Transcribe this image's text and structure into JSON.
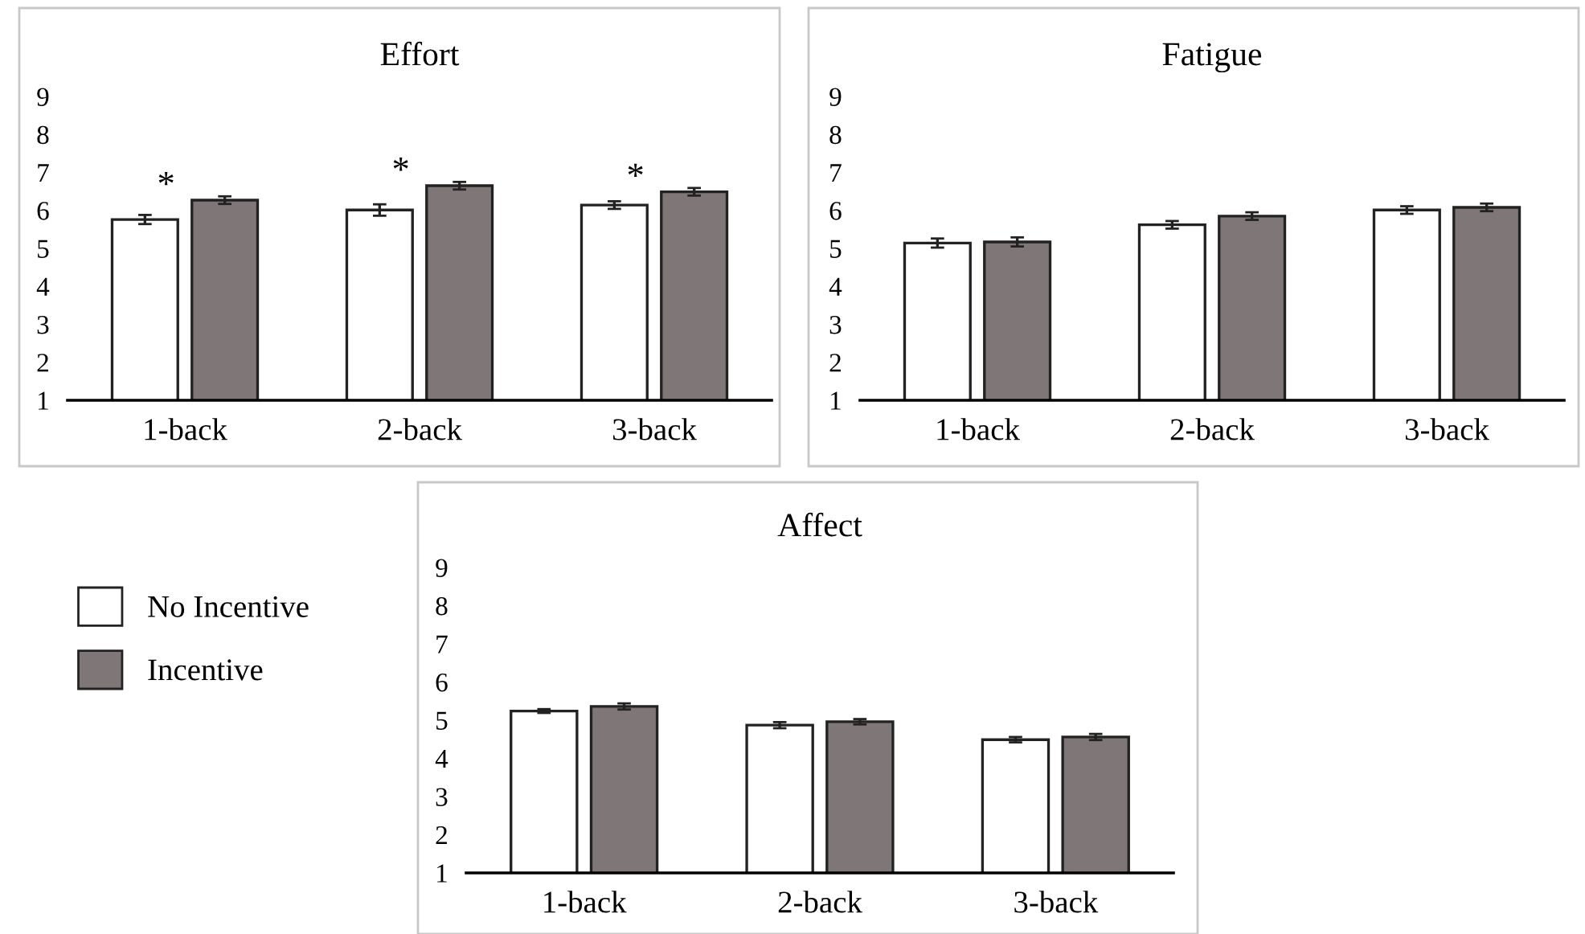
{
  "chart_data": [
    {
      "type": "bar",
      "title": "Effort",
      "categories": [
        "1-back",
        "2-back",
        "3-back"
      ],
      "ylim": [
        1,
        9
      ],
      "yticks": [
        1,
        2,
        3,
        4,
        5,
        6,
        7,
        8,
        9
      ],
      "grid": false,
      "legend": "bottom left",
      "series": [
        {
          "name": "No Incentive",
          "color": "#ffffff",
          "values": [
            5.76,
            6.01,
            6.14
          ],
          "errors": [
            0.12,
            0.15,
            0.1
          ]
        },
        {
          "name": "Incentive",
          "color": "#7f7777",
          "values": [
            6.27,
            6.65,
            6.49
          ],
          "errors": [
            0.1,
            0.1,
            0.1
          ]
        }
      ],
      "annotations": [
        "*",
        "*",
        "*"
      ]
    },
    {
      "type": "bar",
      "title": "Fatigue",
      "categories": [
        "1-back",
        "2-back",
        "3-back"
      ],
      "ylim": [
        1,
        9
      ],
      "yticks": [
        1,
        2,
        3,
        4,
        5,
        6,
        7,
        8,
        9
      ],
      "grid": false,
      "legend": false,
      "series": [
        {
          "color": "#ffffff",
          "values": [
            5.14,
            5.62,
            6.01
          ],
          "errors": [
            0.12,
            0.1,
            0.1
          ]
        },
        {
          "color": "#7f7777",
          "values": [
            5.17,
            5.85,
            6.08
          ],
          "errors": [
            0.12,
            0.1,
            0.1
          ]
        }
      ]
    },
    {
      "type": "bar",
      "title": "Affect",
      "categories": [
        "1-back",
        "2-back",
        "3-back"
      ],
      "ylim": [
        1,
        9
      ],
      "yticks": [
        1,
        2,
        3,
        4,
        5,
        6,
        7,
        8,
        9
      ],
      "grid": false,
      "series": [
        {
          "color": "#ffffff",
          "values": [
            5.24,
            4.87,
            4.49
          ],
          "errors": [
            0.05,
            0.08,
            0.07
          ]
        },
        {
          "color": "#7f7777",
          "values": [
            5.36,
            4.96,
            4.56
          ],
          "errors": [
            0.08,
            0.07,
            0.08
          ]
        }
      ]
    }
  ]
}
